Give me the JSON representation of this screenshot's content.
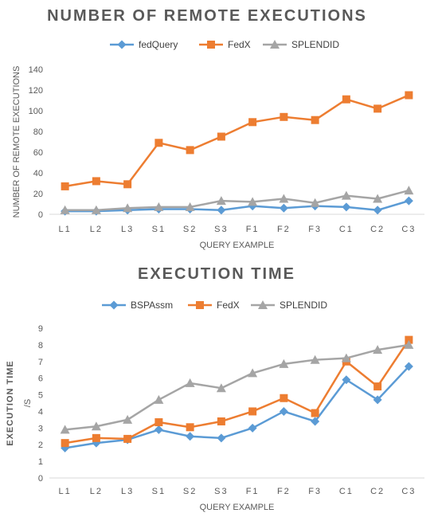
{
  "chart_data": [
    {
      "type": "line",
      "title": "NUMBER OF REMOTE EXECUTIONS",
      "xlabel": "QUERY EXAMPLE",
      "ylabel": "NUMBER OF REMOTE EXECUTIONS",
      "categories": [
        "L1",
        "L2",
        "L3",
        "S1",
        "S2",
        "S3",
        "F1",
        "F2",
        "F3",
        "C1",
        "C2",
        "C3"
      ],
      "ylim": [
        0,
        140
      ],
      "yticks": [
        0,
        20,
        40,
        60,
        80,
        100,
        120,
        140
      ],
      "grid": false,
      "legend": "top",
      "series": [
        {
          "name": "fedQuery",
          "color": "#5B9BD5",
          "marker": "diamond",
          "values": [
            3,
            3,
            4,
            5,
            5,
            4,
            8,
            6,
            8,
            7,
            4,
            13
          ]
        },
        {
          "name": "FedX",
          "color": "#ED7D31",
          "marker": "square",
          "values": [
            27,
            32,
            29,
            69,
            62,
            75,
            89,
            94,
            91,
            111,
            102,
            115
          ]
        },
        {
          "name": "SPLENDID",
          "color": "#A5A5A5",
          "marker": "triangle",
          "values": [
            4,
            4,
            6,
            7,
            7,
            13,
            12,
            15,
            11,
            18,
            15,
            23
          ]
        }
      ]
    },
    {
      "type": "line",
      "title": "EXECUTION  TIME",
      "xlabel": "QUERY EXAMPLE",
      "ylabel": "EXECUTION  TIME",
      "ylabel2": "/S",
      "categories": [
        "L1",
        "L2",
        "L3",
        "S1",
        "S2",
        "S3",
        "F1",
        "F2",
        "F3",
        "C1",
        "C2",
        "C3"
      ],
      "ylim": [
        0,
        9
      ],
      "yticks": [
        0,
        1,
        2,
        3,
        4,
        5,
        6,
        7,
        8,
        9
      ],
      "grid": false,
      "legend": "top",
      "series": [
        {
          "name": "BSPAssm",
          "color": "#5B9BD5",
          "marker": "diamond",
          "values": [
            1.8,
            2.1,
            2.3,
            2.9,
            2.5,
            2.4,
            3.0,
            4.0,
            3.4,
            5.9,
            4.7,
            6.7
          ]
        },
        {
          "name": "FedX",
          "color": "#ED7D31",
          "marker": "square",
          "values": [
            2.1,
            2.4,
            2.35,
            3.35,
            3.05,
            3.4,
            4.0,
            4.8,
            3.9,
            7.0,
            5.5,
            8.3
          ]
        },
        {
          "name": "SPLENDID",
          "color": "#A5A5A5",
          "marker": "triangle",
          "values": [
            2.9,
            3.1,
            3.5,
            4.7,
            5.7,
            5.4,
            6.3,
            6.85,
            7.1,
            7.2,
            7.7,
            8.0
          ]
        }
      ]
    }
  ]
}
